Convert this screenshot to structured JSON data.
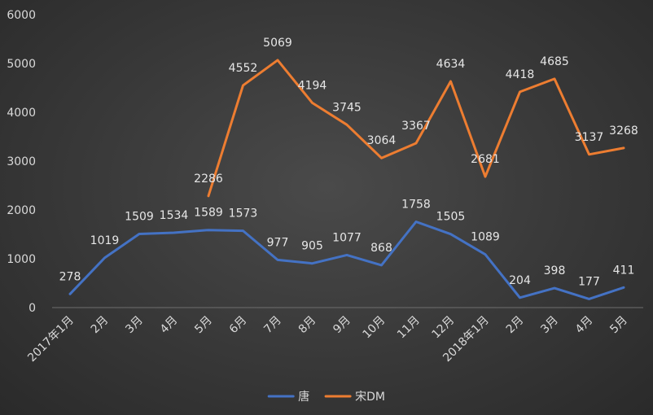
{
  "chart_data": {
    "type": "line",
    "categories": [
      "2017年1月",
      "2月",
      "3月",
      "4月",
      "5月",
      "6月",
      "7月",
      "8月",
      "9月",
      "10月",
      "11月",
      "12月",
      "2018年1月",
      "2月",
      "3月",
      "4月",
      "5月"
    ],
    "series": [
      {
        "name": "唐",
        "color": "#4472c4",
        "values": [
          278,
          1019,
          1509,
          1534,
          1589,
          1573,
          977,
          905,
          1077,
          868,
          1758,
          1505,
          1089,
          204,
          398,
          177,
          411
        ]
      },
      {
        "name": "宋DM",
        "color": "#ed7d31",
        "values": [
          null,
          null,
          null,
          null,
          2286,
          4552,
          5069,
          4194,
          3745,
          3064,
          3367,
          4634,
          2681,
          4418,
          4685,
          3137,
          3268
        ]
      }
    ],
    "ylim": [
      0,
      6000
    ],
    "yticks": [
      0,
      1000,
      2000,
      3000,
      4000,
      5000,
      6000
    ],
    "grid": false,
    "legend": "bottom",
    "data_labels": true
  }
}
